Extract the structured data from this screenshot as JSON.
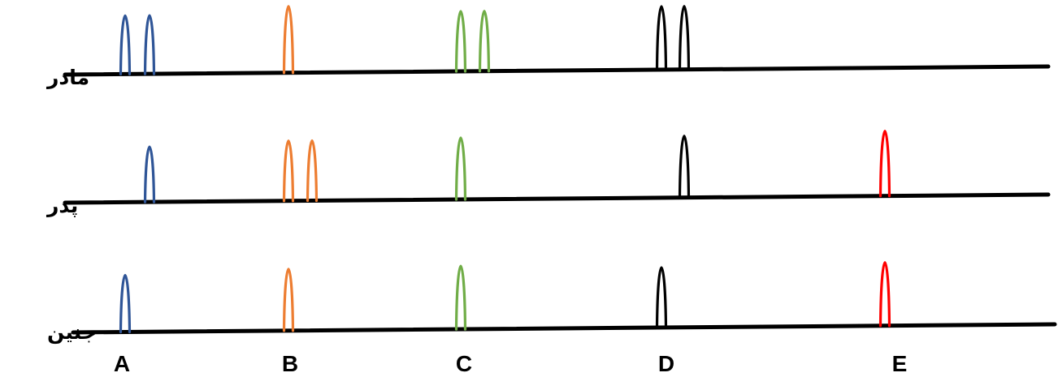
{
  "rows": [
    {
      "label": "مادر",
      "peaks": [
        {
          "marker": "A",
          "allele": 1
        },
        {
          "marker": "A",
          "allele": 2
        },
        {
          "marker": "B",
          "allele": 1
        },
        {
          "marker": "C",
          "allele": 1
        },
        {
          "marker": "C",
          "allele": 2
        },
        {
          "marker": "D",
          "allele": 1
        },
        {
          "marker": "D",
          "allele": 2
        }
      ]
    },
    {
      "label": "پدر",
      "peaks": [
        {
          "marker": "A",
          "allele": 2
        },
        {
          "marker": "B",
          "allele": 1
        },
        {
          "marker": "B",
          "allele": 2
        },
        {
          "marker": "C",
          "allele": 1
        },
        {
          "marker": "D",
          "allele": 2
        },
        {
          "marker": "E",
          "allele": 1
        }
      ]
    },
    {
      "label": "جنین",
      "peaks": [
        {
          "marker": "A",
          "allele": 1
        },
        {
          "marker": "B",
          "allele": 1
        },
        {
          "marker": "C",
          "allele": 1
        },
        {
          "marker": "D",
          "allele": 1
        },
        {
          "marker": "E",
          "allele": 1
        }
      ]
    }
  ],
  "markers": [
    {
      "label": "A",
      "color": "#2F5597"
    },
    {
      "label": "B",
      "color": "#ED7D31"
    },
    {
      "label": "C",
      "color": "#70AD47"
    },
    {
      "label": "D",
      "color": "#000000"
    },
    {
      "label": "E",
      "color": "#FF0000"
    }
  ]
}
